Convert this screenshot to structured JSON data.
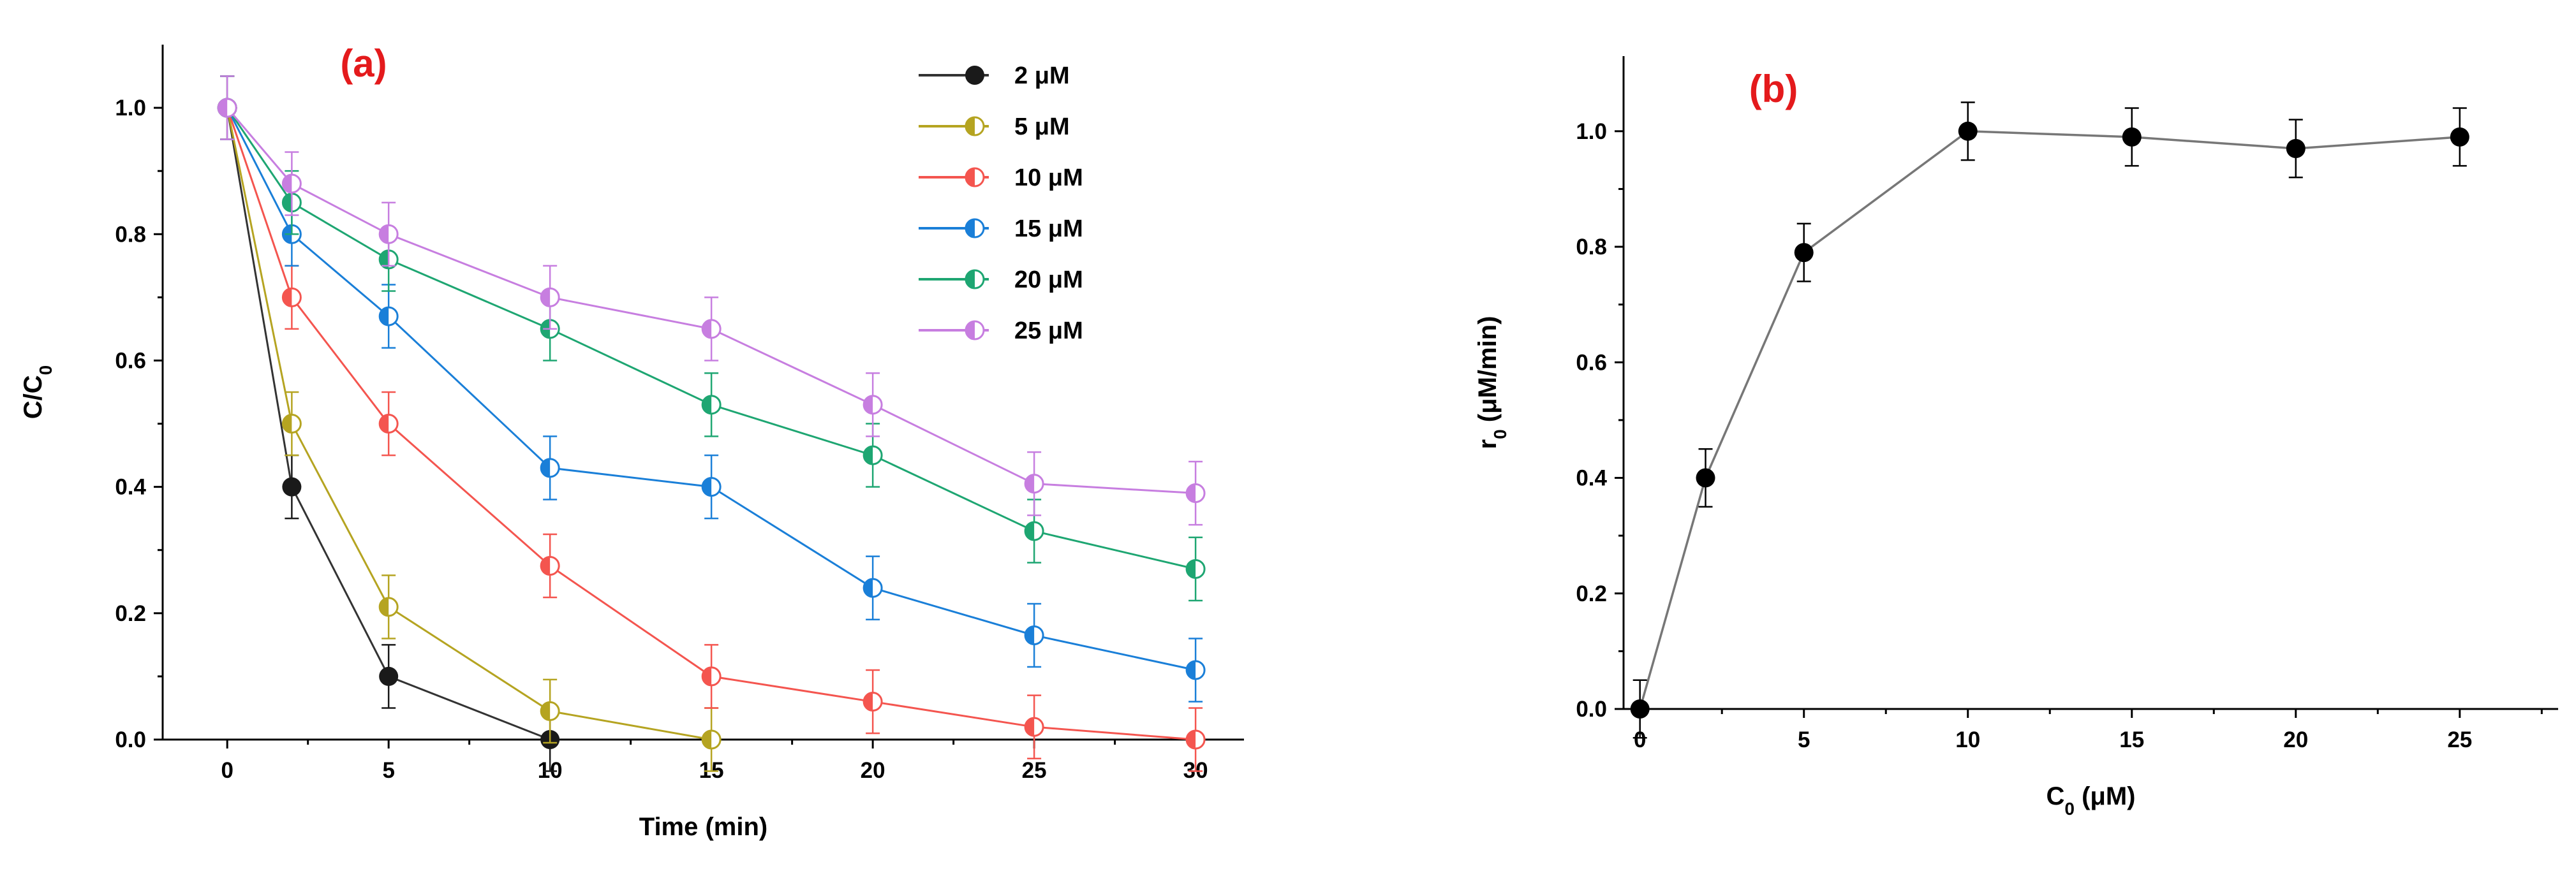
{
  "chart_data": [
    {
      "type": "line",
      "panel_label": "(a)",
      "panel_label_color": "#e41a1c",
      "xlabel": "Time (min)",
      "ylabel": "C/C",
      "ylabel_sub": "0",
      "xlim": [
        -2,
        31.5
      ],
      "ylim": [
        0,
        1.1
      ],
      "xticks": [
        0,
        5,
        10,
        15,
        20,
        25,
        30
      ],
      "yticks": [
        0.0,
        0.2,
        0.4,
        0.6,
        0.8,
        1.0
      ],
      "ytick_labels": [
        "0.0",
        "0.2",
        "0.4",
        "0.6",
        "0.8",
        "1.0"
      ],
      "legend_position": "top-right",
      "series": [
        {
          "name": "2 μM",
          "color": "#1a1a1a",
          "line_color": "#333333",
          "x": [
            0,
            2,
            5,
            10
          ],
          "y": [
            1.0,
            0.4,
            0.1,
            0.0
          ],
          "err": [
            0.05,
            0.05,
            0.05,
            0.05
          ]
        },
        {
          "name": "5 μM",
          "color": "#b5a421",
          "line_color": "#b5a421",
          "x": [
            0,
            2,
            5,
            10,
            15
          ],
          "y": [
            1.0,
            0.5,
            0.21,
            0.045,
            0.0
          ],
          "err": [
            0.05,
            0.05,
            0.05,
            0.05,
            0.05
          ]
        },
        {
          "name": "10 μM",
          "color": "#f4554f",
          "line_color": "#f4554f",
          "x": [
            0,
            2,
            5,
            10,
            15,
            20,
            25,
            30
          ],
          "y": [
            1.0,
            0.7,
            0.5,
            0.275,
            0.1,
            0.06,
            0.02,
            0.0
          ],
          "err": [
            0.05,
            0.05,
            0.05,
            0.05,
            0.05,
            0.05,
            0.05,
            0.05
          ]
        },
        {
          "name": "15 μM",
          "color": "#1a7fd8",
          "line_color": "#1a7fd8",
          "x": [
            0,
            2,
            5,
            10,
            15,
            20,
            25,
            30
          ],
          "y": [
            1.0,
            0.8,
            0.67,
            0.43,
            0.4,
            0.24,
            0.165,
            0.11
          ],
          "err": [
            0.05,
            0.05,
            0.05,
            0.05,
            0.05,
            0.05,
            0.05,
            0.05
          ]
        },
        {
          "name": "20 μM",
          "color": "#1ea672",
          "line_color": "#1ea672",
          "x": [
            0,
            2,
            5,
            10,
            15,
            20,
            25,
            30
          ],
          "y": [
            1.0,
            0.85,
            0.76,
            0.65,
            0.53,
            0.45,
            0.33,
            0.27
          ],
          "err": [
            0.05,
            0.05,
            0.05,
            0.05,
            0.05,
            0.05,
            0.05,
            0.05
          ]
        },
        {
          "name": "25 μM",
          "color": "#c77ee0",
          "line_color": "#c77ee0",
          "x": [
            0,
            2,
            5,
            10,
            15,
            20,
            25,
            30
          ],
          "y": [
            1.0,
            0.88,
            0.8,
            0.7,
            0.65,
            0.53,
            0.405,
            0.39
          ],
          "err": [
            0.05,
            0.05,
            0.05,
            0.05,
            0.05,
            0.05,
            0.05,
            0.05
          ]
        }
      ]
    },
    {
      "type": "line",
      "panel_label": "(b)",
      "panel_label_color": "#e41a1c",
      "xlabel": "C",
      "xlabel_sub": "0",
      "xlabel_suffix": " (μM)",
      "ylabel": "r",
      "ylabel_sub": "0",
      "ylabel_suffix": " (μM/min)",
      "xlim": [
        -0.5,
        28
      ],
      "ylim": [
        0,
        1.13
      ],
      "xticks": [
        0,
        5,
        10,
        15,
        20,
        25
      ],
      "yticks": [
        0.0,
        0.2,
        0.4,
        0.6,
        0.8,
        1.0
      ],
      "ytick_labels": [
        "0.0",
        "0.2",
        "0.4",
        "0.6",
        "0.8",
        "1.0"
      ],
      "series": [
        {
          "name": "r0",
          "color": "#000000",
          "line_color": "#777777",
          "x": [
            0,
            2,
            5,
            10,
            15,
            20,
            25
          ],
          "y": [
            0.0,
            0.4,
            0.79,
            1.0,
            0.99,
            0.97,
            0.99
          ],
          "err": [
            0.05,
            0.05,
            0.05,
            0.05,
            0.05,
            0.05,
            0.05
          ]
        }
      ]
    }
  ]
}
